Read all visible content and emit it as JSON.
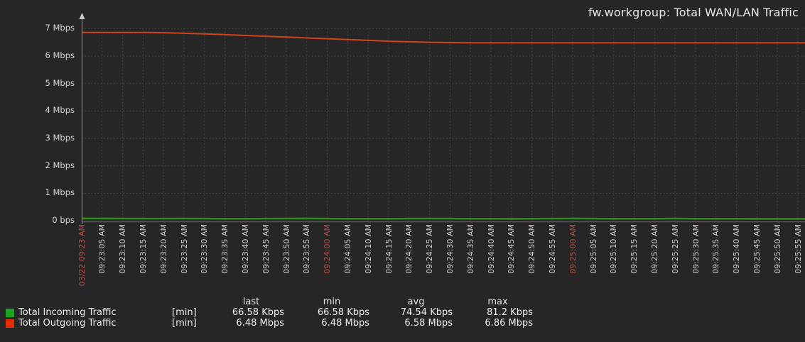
{
  "title": "fw.workgroup: Total WAN/LAN Traffic",
  "colors": {
    "background": "#262626",
    "title_text": "#e8e8e8",
    "tick_text": "#cfcfcf",
    "date_tick_text": "#b4504e",
    "grid": "#4b4b4b",
    "axis": "#9a9a9a",
    "axis_arrow": "#c9c9c9",
    "baseline": "#585858",
    "incoming_line": "#2e8c1e",
    "outgoing_line": "#d2431f",
    "incoming_swatch": "#1ca41c",
    "outgoing_swatch": "#e22b00",
    "legend_text": "#f0f0f0"
  },
  "chart_data": {
    "type": "line",
    "title": "fw.workgroup: Total WAN/LAN Traffic",
    "unit": "Mbps",
    "ylim": [
      0,
      7
    ],
    "grid": true,
    "legend_position": "bottom",
    "y_ticks": [
      "0 bps",
      "1 Mbps",
      "2 Mbps",
      "3 Mbps",
      "4 Mbps",
      "5 Mbps",
      "6 Mbps",
      "7 Mbps"
    ],
    "x_labels": [
      "03/22 09:23 AM",
      "09:23:05 AM",
      "09:23:10 AM",
      "09:23:15 AM",
      "09:23:20 AM",
      "09:23:25 AM",
      "09:23:30 AM",
      "09:23:35 AM",
      "09:23:40 AM",
      "09:23:45 AM",
      "09:23:50 AM",
      "09:23:55 AM",
      "09:24:00 AM",
      "09:24:05 AM",
      "09:24:10 AM",
      "09:24:15 AM",
      "09:24:20 AM",
      "09:24:25 AM",
      "09:24:30 AM",
      "09:24:35 AM",
      "09:24:40 AM",
      "09:24:45 AM",
      "09:24:50 AM",
      "09:24:55 AM",
      "09:25:00 AM",
      "09:25:05 AM",
      "09:25:10 AM",
      "09:25:15 AM",
      "09:25:20 AM",
      "09:25:25 AM",
      "09:25:30 AM",
      "09:25:35 AM",
      "09:25:40 AM",
      "09:25:45 AM",
      "09:25:50 AM",
      "09:25:55 AM"
    ],
    "highlighted_x_indices": [
      0,
      12,
      24
    ],
    "series": [
      {
        "name": "Total Incoming Traffic",
        "unit": "Mbps",
        "values": [
          0.0812,
          0.079,
          0.0765,
          0.0742,
          0.0758,
          0.0771,
          0.0744,
          0.0722,
          0.0706,
          0.0749,
          0.0781,
          0.0808,
          0.0762,
          0.0734,
          0.0712,
          0.0695,
          0.0741,
          0.0769,
          0.0752,
          0.0723,
          0.0701,
          0.0685,
          0.0728,
          0.0757,
          0.0789,
          0.0751,
          0.0718,
          0.0703,
          0.0736,
          0.0774,
          0.0729,
          0.0711,
          0.0692,
          0.0681,
          0.0672,
          0.0666
        ]
      },
      {
        "name": "Total Outgoing Traffic",
        "unit": "Mbps",
        "values": [
          6.86,
          6.86,
          6.86,
          6.86,
          6.85,
          6.83,
          6.81,
          6.78,
          6.75,
          6.72,
          6.69,
          6.66,
          6.63,
          6.6,
          6.57,
          6.54,
          6.52,
          6.5,
          6.49,
          6.48,
          6.48,
          6.48,
          6.48,
          6.48,
          6.48,
          6.48,
          6.48,
          6.48,
          6.48,
          6.48,
          6.48,
          6.48,
          6.48,
          6.48,
          6.48,
          6.48
        ]
      }
    ]
  },
  "legend": {
    "headers": {
      "last": "last",
      "min": "min",
      "avg": "avg",
      "max": "max"
    },
    "rows": [
      {
        "label": "Total Incoming Traffic",
        "function": "[min]",
        "last": "66.58 Kbps",
        "min": "66.58 Kbps",
        "avg": "74.54 Kbps",
        "max": "81.2 Kbps",
        "color": "#1ca41c"
      },
      {
        "label": "Total Outgoing Traffic",
        "function": "[min]",
        "last": "6.48 Mbps",
        "min": "6.48 Mbps",
        "avg": "6.58 Mbps",
        "max": "6.86 Mbps",
        "color": "#e22b00"
      }
    ]
  }
}
